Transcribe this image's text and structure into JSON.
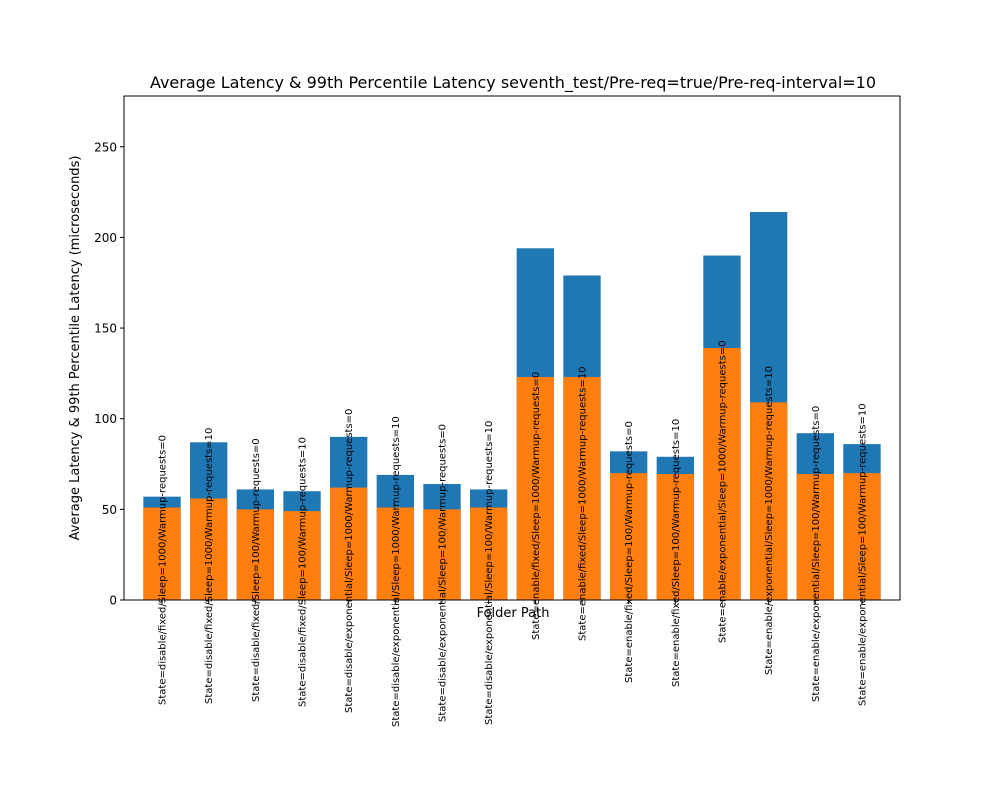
{
  "chart_data": {
    "type": "bar",
    "title": "Average Latency & 99th Percentile Latency seventh_test/Pre-req=true/Pre-req-interval=10",
    "x_label": "Folder Path",
    "y_label": "Average Latency & 99th Percentile Latency (microseconds)",
    "categories": [
      "State=disable/fixed/Sleep=1000/Warmup-requests=0",
      "State=disable/fixed/Sleep=1000/Warmup-requests=10",
      "State=disable/fixed/Sleep=100/Warmup-requests=0",
      "State=disable/fixed/Sleep=100/Warmup-requests=10",
      "State=disable/exponential/Sleep=1000/Warmup-requests=0",
      "State=disable/exponential/Sleep=1000/Warmup-requests=10",
      "State=disable/exponential/Sleep=100/Warmup-requests=0",
      "State=disable/exponential/Sleep=100/Warmup-requests=10",
      "State=enable/fixed/Sleep=1000/Warmup-requests=0",
      "State=enable/fixed/Sleep=1000/Warmup-requests=10",
      "State=enable/fixed/Sleep=100/Warmup-requests=0",
      "State=enable/fixed/Sleep=100/Warmup-requests=10",
      "State=enable/exponential/Sleep=1000/Warmup-requests=0",
      "State=enable/exponential/Sleep=1000/Warmup-requests=10",
      "State=enable/exponential/Sleep=100/Warmup-requests=0",
      "State=enable/exponential/Sleep=100/Warmup-requests=10"
    ],
    "series": [
      {
        "color": "#1f77b4",
        "values": [
          57,
          87,
          61,
          60,
          90,
          69,
          64,
          61,
          194,
          179,
          82,
          79,
          190,
          214,
          92,
          86
        ]
      },
      {
        "color": "#ff7f0e",
        "values": [
          51,
          56,
          50,
          49,
          62,
          51,
          50,
          51,
          123,
          123,
          70,
          69.5,
          139,
          109,
          69.5,
          70
        ]
      }
    ],
    "ylim": [
      0,
      278
    ],
    "yticks": [
      0,
      50,
      100,
      150,
      200,
      250
    ]
  }
}
